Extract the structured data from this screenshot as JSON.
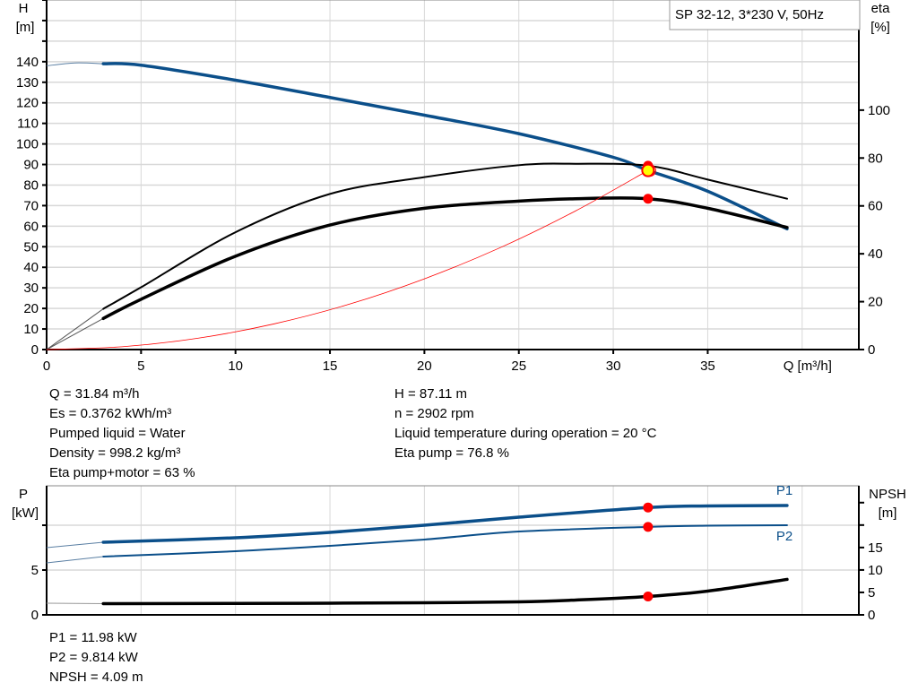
{
  "legend_box": "SP 32-12, 3*230 V, 50Hz",
  "colors": {
    "head": "#0b4f8a",
    "eta": "#000000",
    "system": "#ff0000",
    "duty_point": "#ffff00",
    "marker": "#ff0000",
    "grid": "#d8d8d8"
  },
  "chart_data": [
    {
      "type": "line",
      "title": "",
      "xlabel": "Q [m³/h]",
      "xlim": [
        0,
        43
      ],
      "x_ticks": [
        "0",
        "5",
        "10",
        "15",
        "20",
        "25",
        "30",
        "35"
      ],
      "y_left": {
        "label_line1": "H",
        "label_line2": "[m]",
        "lim": [
          0,
          170
        ],
        "ticks": [
          "0",
          "10",
          "20",
          "30",
          "40",
          "50",
          "60",
          "70",
          "80",
          "90",
          "100",
          "110",
          "120",
          "130",
          "140"
        ]
      },
      "y_right": {
        "label_line1": "eta",
        "label_line2": "[%]",
        "lim": [
          0,
          146
        ],
        "ticks": [
          "0",
          "20",
          "40",
          "60",
          "80",
          "100"
        ]
      },
      "grid": true,
      "series": [
        {
          "key": "H",
          "axis": "left",
          "x": [
            3,
            5,
            10,
            15,
            20,
            25,
            30,
            31.84,
            35,
            39.2
          ],
          "y": [
            139,
            138.3,
            131,
            122.6,
            114,
            105,
            93.5,
            87.11,
            77,
            58.7
          ],
          "ext_x": [
            0,
            1.5,
            3
          ],
          "ext_y": [
            138,
            139.4,
            139
          ]
        },
        {
          "key": "eta_pump",
          "axis": "right",
          "x": [
            3,
            5,
            10,
            15,
            20,
            25,
            28,
            31.84,
            35,
            39.2
          ],
          "y": [
            17,
            26,
            49,
            65,
            72,
            77,
            77.6,
            76.8,
            71,
            63
          ],
          "ext_x": [
            0,
            3
          ],
          "ext_y": [
            0,
            17
          ]
        },
        {
          "key": "eta_total",
          "axis": "right",
          "x": [
            3,
            5,
            10,
            15,
            20,
            25,
            28,
            31.84,
            35,
            39.2
          ],
          "y": [
            13,
            21,
            39,
            52,
            59,
            62,
            63,
            63,
            59,
            51
          ],
          "ext_x": [
            0,
            3
          ],
          "ext_y": [
            0,
            13
          ]
        },
        {
          "key": "system_curve",
          "axis": "left",
          "x": [
            0,
            4,
            8,
            12,
            16,
            20,
            24,
            28,
            31.84
          ],
          "y": [
            0,
            1.37,
            5.5,
            12.4,
            22,
            34.4,
            49.5,
            67.4,
            87.11
          ]
        }
      ],
      "duty_point": {
        "x": 31.84,
        "y": 87.11
      },
      "markers": [
        {
          "x": 31.84,
          "y": 76.8,
          "axis": "right"
        },
        {
          "x": 31.84,
          "y": 63,
          "axis": "right"
        }
      ]
    },
    {
      "type": "line",
      "title": "",
      "xlim": [
        0,
        43
      ],
      "y_left": {
        "label_line1": "P",
        "label_line2": "[kW]",
        "lim": [
          0,
          14.4
        ],
        "ticks": [
          "0",
          "5",
          ""
        ]
      },
      "y_right": {
        "label_line1": "NPSH",
        "label_line2": "[m]",
        "lim": [
          0,
          28.75
        ],
        "ticks": [
          "0",
          "5",
          "10",
          "15",
          "",
          ""
        ]
      },
      "grid": true,
      "series": [
        {
          "key": "P1",
          "name": "P1",
          "axis": "left",
          "x": [
            3,
            10,
            15,
            20,
            25,
            31.84,
            35,
            39.2
          ],
          "y": [
            8.1,
            8.6,
            9.2,
            10,
            10.9,
            11.98,
            12.15,
            12.2
          ],
          "ext_x": [
            0,
            3
          ],
          "ext_y": [
            7.5,
            8.1
          ]
        },
        {
          "key": "P2",
          "name": "P2",
          "axis": "left",
          "x": [
            3,
            10,
            15,
            20,
            25,
            31.84,
            35,
            39.2
          ],
          "y": [
            6.5,
            7.1,
            7.7,
            8.4,
            9.3,
            9.814,
            9.95,
            10
          ],
          "ext_x": [
            0,
            3
          ],
          "ext_y": [
            5.8,
            6.5
          ]
        },
        {
          "key": "NPSH",
          "axis": "right",
          "x": [
            3,
            10,
            15,
            20,
            25,
            28,
            31.84,
            35,
            39.2
          ],
          "y": [
            2.5,
            2.55,
            2.6,
            2.7,
            2.9,
            3.3,
            4.09,
            5.3,
            7.9
          ],
          "ext_x": [
            0,
            3
          ],
          "ext_y": [
            2.6,
            2.5
          ]
        }
      ],
      "markers": [
        {
          "x": 31.84,
          "y": 11.98,
          "axis": "left"
        },
        {
          "x": 31.84,
          "y": 9.814,
          "axis": "left"
        },
        {
          "x": 31.84,
          "y": 4.09,
          "axis": "right"
        }
      ]
    }
  ],
  "info_top": {
    "left": [
      "Q = 31.84 m³/h",
      "Es = 0.3762 kWh/m³",
      "Pumped liquid = Water",
      "Density = 998.2 kg/m³",
      "Eta pump+motor = 63 %"
    ],
    "right": [
      "H = 87.11 m",
      "n = 2902 rpm",
      "Liquid temperature during operation = 20 °C",
      "Eta pump = 76.8 %"
    ]
  },
  "info_bottom": [
    "P1 = 11.98 kW",
    "P2 = 9.814 kW",
    "NPSH = 4.09 m"
  ]
}
